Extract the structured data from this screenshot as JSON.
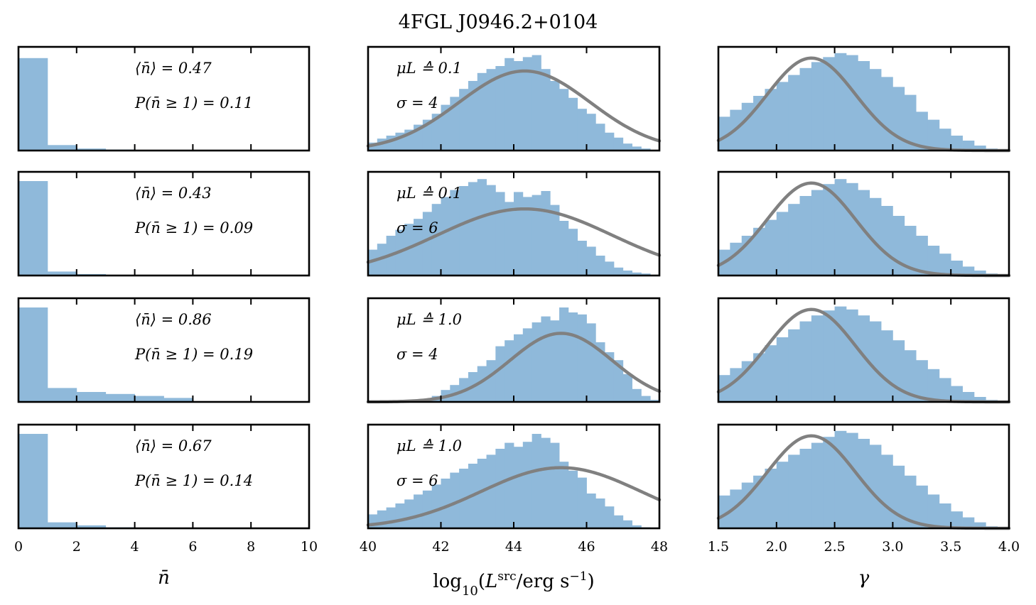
{
  "figure_title": "4FGL J0946.2+0104",
  "colors": {
    "hist": "#8fb9da",
    "fit": "#808080",
    "frame": "#000000"
  },
  "chart_data": [
    {
      "type": "bar",
      "column": "n",
      "xlim": [
        0,
        10
      ],
      "xticks": [
        0,
        2,
        4,
        6,
        8,
        10
      ],
      "xlabel": "̅n",
      "rows": [
        {
          "ann1": "⟨n̄⟩ = 0.47",
          "ann2": "P(n̄ ≥ 1) = 0.11",
          "bin_edges": [
            0,
            1,
            2,
            3,
            4,
            5,
            6
          ],
          "counts": [
            0.93,
            0.055,
            0.02,
            0.01,
            0.004,
            0.002
          ]
        },
        {
          "ann1": "⟨n̄⟩ = 0.43",
          "ann2": "P(n̄ ≥ 1) = 0.09",
          "bin_edges": [
            0,
            1,
            2,
            3,
            4,
            5,
            6
          ],
          "counts": [
            0.95,
            0.04,
            0.015,
            0.007,
            0.003,
            0.001
          ]
        },
        {
          "ann1": "⟨n̄⟩ = 0.86",
          "ann2": "P(n̄ ≥ 1) = 0.19",
          "bin_edges": [
            0,
            1,
            2,
            3,
            4,
            5,
            6
          ],
          "counts": [
            0.95,
            0.14,
            0.1,
            0.08,
            0.06,
            0.04
          ]
        },
        {
          "ann1": "⟨n̄⟩ = 0.67",
          "ann2": "P(n̄ ≥ 1) = 0.14",
          "bin_edges": [
            0,
            1,
            2,
            3,
            4,
            5,
            6
          ],
          "counts": [
            0.95,
            0.06,
            0.03,
            0.01,
            0.004,
            0.002
          ]
        }
      ]
    },
    {
      "type": "bar",
      "column": "L",
      "xlim": [
        40,
        48
      ],
      "xticks": [
        40,
        42,
        44,
        46,
        48
      ],
      "xlabel": "log10(Lsrc/erg s−1)",
      "bin_start": 40,
      "bin_width": 0.25,
      "rows": [
        {
          "ann1": "μL ≙ 0.1",
          "ann2": "σ = 4",
          "fit_mu": 44.3,
          "fit_sigma": 1.8,
          "fit_peak": 0.8,
          "counts": [
            0.08,
            0.12,
            0.15,
            0.18,
            0.21,
            0.26,
            0.31,
            0.37,
            0.46,
            0.54,
            0.62,
            0.7,
            0.78,
            0.82,
            0.85,
            0.93,
            0.9,
            0.94,
            0.96,
            0.82,
            0.7,
            0.62,
            0.53,
            0.42,
            0.37,
            0.27,
            0.18,
            0.13,
            0.07,
            0.04,
            0.02,
            0.0
          ]
        },
        {
          "ann1": "μL ≙ 0.1",
          "ann2": "σ = 6",
          "fit_mu": 44.3,
          "fit_sigma": 2.4,
          "fit_peak": 0.67,
          "counts": [
            0.26,
            0.32,
            0.4,
            0.46,
            0.52,
            0.57,
            0.64,
            0.72,
            0.79,
            0.86,
            0.9,
            0.94,
            0.97,
            0.91,
            0.84,
            0.74,
            0.84,
            0.79,
            0.81,
            0.85,
            0.71,
            0.55,
            0.47,
            0.35,
            0.29,
            0.2,
            0.14,
            0.08,
            0.05,
            0.03,
            0.02,
            0.0
          ]
        },
        {
          "ann1": "μL ≙ 1.0",
          "ann2": "σ = 4",
          "fit_mu": 45.3,
          "fit_sigma": 1.4,
          "fit_peak": 0.69,
          "counts": [
            0.0,
            0.0,
            0.0,
            0.0,
            0.0,
            0.0,
            0.03,
            0.06,
            0.12,
            0.17,
            0.24,
            0.3,
            0.36,
            0.42,
            0.56,
            0.62,
            0.68,
            0.74,
            0.8,
            0.86,
            0.82,
            0.95,
            0.9,
            0.88,
            0.79,
            0.6,
            0.5,
            0.42,
            0.28,
            0.13,
            0.06,
            0.02
          ]
        },
        {
          "ann1": "μL ≙ 1.0",
          "ann2": "σ = 6",
          "fit_mu": 45.3,
          "fit_sigma": 2.2,
          "fit_peak": 0.61,
          "counts": [
            0.14,
            0.18,
            0.21,
            0.25,
            0.29,
            0.34,
            0.38,
            0.44,
            0.5,
            0.56,
            0.6,
            0.65,
            0.7,
            0.74,
            0.8,
            0.86,
            0.82,
            0.87,
            0.95,
            0.91,
            0.86,
            0.67,
            0.58,
            0.51,
            0.35,
            0.3,
            0.22,
            0.13,
            0.08,
            0.03,
            0.01,
            0.0
          ]
        }
      ]
    },
    {
      "type": "bar",
      "column": "gamma",
      "xlim": [
        1.5,
        4.0
      ],
      "xticks": [
        1.5,
        2.0,
        2.5,
        3.0,
        3.5,
        4.0
      ],
      "xlabel": "γ",
      "bin_start": 1.5,
      "bin_width": 0.1,
      "fit_mu": 2.3,
      "fit_sigma": 0.38,
      "fit_peak": 0.93,
      "rows": [
        {
          "counts": [
            0.34,
            0.41,
            0.48,
            0.55,
            0.62,
            0.69,
            0.76,
            0.83,
            0.89,
            0.94,
            0.98,
            0.96,
            0.9,
            0.82,
            0.74,
            0.64,
            0.56,
            0.39,
            0.31,
            0.22,
            0.15,
            0.1,
            0.05,
            0.02,
            0.01
          ]
        },
        {
          "counts": [
            0.26,
            0.33,
            0.4,
            0.48,
            0.56,
            0.64,
            0.72,
            0.8,
            0.86,
            0.92,
            0.97,
            0.93,
            0.86,
            0.78,
            0.7,
            0.6,
            0.5,
            0.4,
            0.3,
            0.22,
            0.15,
            0.09,
            0.05,
            0.02,
            0.01
          ]
        },
        {
          "counts": [
            0.27,
            0.34,
            0.41,
            0.49,
            0.57,
            0.65,
            0.73,
            0.81,
            0.87,
            0.92,
            0.96,
            0.93,
            0.87,
            0.81,
            0.72,
            0.62,
            0.52,
            0.42,
            0.33,
            0.24,
            0.16,
            0.1,
            0.05,
            0.02,
            0.01
          ]
        },
        {
          "counts": [
            0.33,
            0.39,
            0.46,
            0.53,
            0.6,
            0.67,
            0.74,
            0.8,
            0.86,
            0.92,
            0.98,
            0.96,
            0.9,
            0.84,
            0.74,
            0.63,
            0.53,
            0.43,
            0.34,
            0.25,
            0.17,
            0.11,
            0.06,
            0.02,
            0.01
          ]
        }
      ]
    }
  ]
}
